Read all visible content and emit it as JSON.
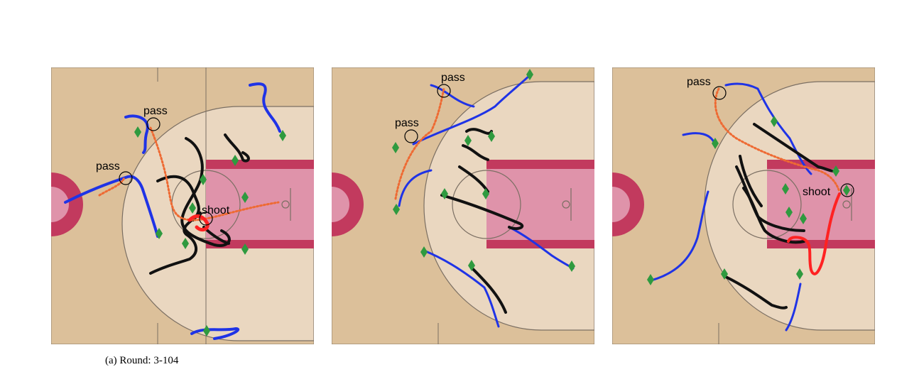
{
  "colors": {
    "court_wood": "#dcc09a",
    "arc_zone": "#ead7c0",
    "paint_outer": "#c23a5e",
    "paint_inner": "#df93aa",
    "offense": "#1f33e6",
    "defense": "#111111",
    "ball": "#ee6a33",
    "shot": "#ff2222",
    "marker": "#2f9a3f"
  },
  "panels": [
    {
      "id": "panel-1",
      "labels": [
        {
          "text": "pass",
          "type": "pass"
        },
        {
          "text": "pass",
          "type": "pass"
        },
        {
          "text": "shoot",
          "type": "shoot"
        }
      ]
    },
    {
      "id": "panel-2",
      "labels": [
        {
          "text": "pass",
          "type": "pass"
        },
        {
          "text": "pass",
          "type": "pass"
        }
      ]
    },
    {
      "id": "panel-3",
      "labels": [
        {
          "text": "pass",
          "type": "pass"
        },
        {
          "text": "shoot",
          "type": "shoot"
        }
      ]
    }
  ],
  "caption": "(a) Round: 3-104"
}
